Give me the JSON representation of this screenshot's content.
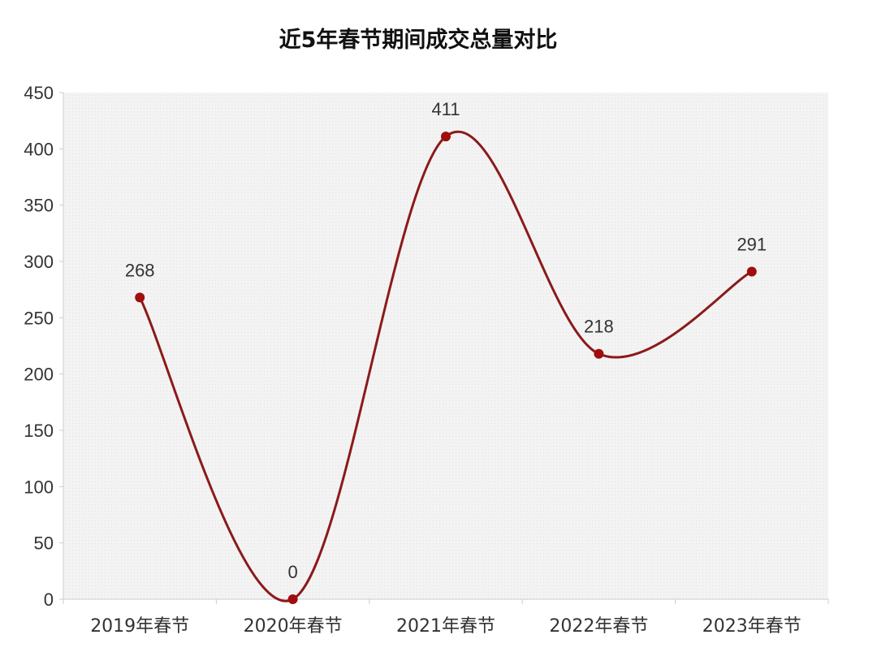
{
  "chart_data": {
    "type": "line",
    "title": "近5年春节期间成交总量对比",
    "xlabel": "",
    "ylabel": "",
    "categories": [
      "2019年春节",
      "2020年春节",
      "2021年春节",
      "2022年春节",
      "2023年春节"
    ],
    "series": [
      {
        "values": [
          268,
          0,
          411,
          218,
          291
        ]
      }
    ],
    "data_labels": [
      "268",
      "0",
      "411",
      "218",
      "291"
    ],
    "ylim": [
      0,
      450
    ],
    "yticks": [
      0,
      50,
      100,
      150,
      200,
      250,
      300,
      350,
      400,
      450
    ],
    "grid": false,
    "smooth": true,
    "legend": "none",
    "colors": {
      "line": "#8b1a1a",
      "marker": "#a00d0d",
      "plot_background": "#f0f0f0",
      "axis": "#cccccc"
    }
  }
}
